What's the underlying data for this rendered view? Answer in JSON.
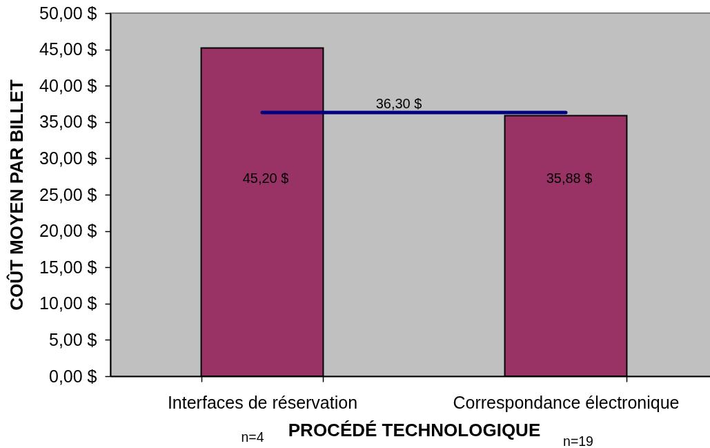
{
  "chart_data": {
    "type": "bar",
    "xlabel": "PROCÉDÉ TECHNOLOGIQUE",
    "ylabel": "COÛT MOYEN PAR BILLET",
    "categories": [
      "Interfaces de réservation",
      "Correspondance électronique"
    ],
    "series": [
      {
        "color": "#993366",
        "values": [
          45.2,
          35.88
        ],
        "value_labels": [
          "45,20 $",
          "35,88 $"
        ]
      },
      {
        "type": "line",
        "color": "#000080",
        "values": [
          36.3,
          36.3
        ]
      }
    ],
    "ylim": [
      0,
      50
    ],
    "yticks": [
      {
        "value": 0,
        "label": "0,00 $"
      },
      {
        "value": 5,
        "label": "5,00 $"
      },
      {
        "value": 10,
        "label": "10,00 $"
      },
      {
        "value": 15,
        "label": "15,00 $"
      },
      {
        "value": 20,
        "label": "20,00 $"
      },
      {
        "value": 25,
        "label": "25,00 $"
      },
      {
        "value": 30,
        "label": "30,00 $"
      },
      {
        "value": 35,
        "label": "35,00 $"
      },
      {
        "value": 40,
        "label": "40,00 $"
      },
      {
        "value": 45,
        "label": "45,00 $"
      },
      {
        "value": 50,
        "label": "50,00 $"
      }
    ],
    "annotations": [
      {
        "text": "36,30 $",
        "y": 36.3
      },
      "n=4",
      "n=19"
    ]
  }
}
